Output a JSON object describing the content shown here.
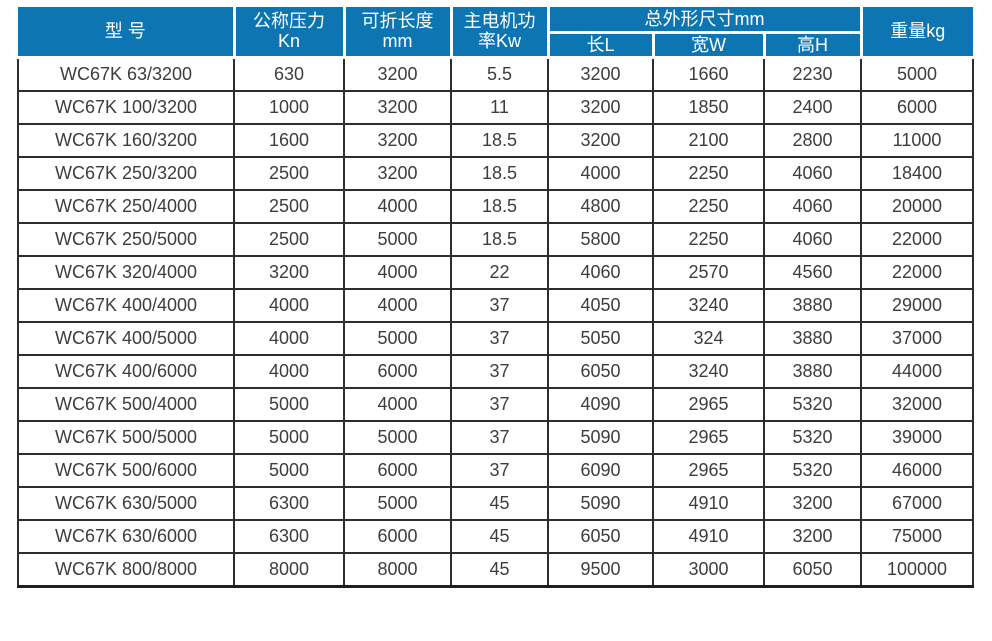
{
  "colors": {
    "header_blue": "#0d76b2",
    "grid_dark": "#2d2d2d",
    "text_dark": "#3d3d3d",
    "header_text": "#ffffff"
  },
  "table": {
    "header": {
      "model": "型 号",
      "pressure_line1": "公称压力",
      "pressure_line2": "Kn",
      "length_line1": "可折长度",
      "length_line2": "mm",
      "power_line1": "主电机功",
      "power_line2": "率Kw",
      "dims_group": "总外形尺寸mm",
      "dim_l": "长L",
      "dim_w": "宽W",
      "dim_h": "高H",
      "weight": "重量kg"
    },
    "rows": [
      {
        "model": "WC67K 63/3200",
        "pressure_kn": "630",
        "length_mm": "3200",
        "power_kw": "5.5",
        "l": "3200",
        "w": "1660",
        "h": "2230",
        "weight_kg": "5000"
      },
      {
        "model": "WC67K 100/3200",
        "pressure_kn": "1000",
        "length_mm": "3200",
        "power_kw": "11",
        "l": "3200",
        "w": "1850",
        "h": "2400",
        "weight_kg": "6000"
      },
      {
        "model": "WC67K 160/3200",
        "pressure_kn": "1600",
        "length_mm": "3200",
        "power_kw": "18.5",
        "l": "3200",
        "w": "2100",
        "h": "2800",
        "weight_kg": "11000"
      },
      {
        "model": "WC67K 250/3200",
        "pressure_kn": "2500",
        "length_mm": "3200",
        "power_kw": "18.5",
        "l": "4000",
        "w": "2250",
        "h": "4060",
        "weight_kg": "18400"
      },
      {
        "model": "WC67K 250/4000",
        "pressure_kn": "2500",
        "length_mm": "4000",
        "power_kw": "18.5",
        "l": "4800",
        "w": "2250",
        "h": "4060",
        "weight_kg": "20000"
      },
      {
        "model": "WC67K 250/5000",
        "pressure_kn": "2500",
        "length_mm": "5000",
        "power_kw": "18.5",
        "l": "5800",
        "w": "2250",
        "h": "4060",
        "weight_kg": "22000"
      },
      {
        "model": "WC67K 320/4000",
        "pressure_kn": "3200",
        "length_mm": "4000",
        "power_kw": "22",
        "l": "4060",
        "w": "2570",
        "h": "4560",
        "weight_kg": "22000"
      },
      {
        "model": "WC67K 400/4000",
        "pressure_kn": "4000",
        "length_mm": "4000",
        "power_kw": "37",
        "l": "4050",
        "w": "3240",
        "h": "3880",
        "weight_kg": "29000"
      },
      {
        "model": "WC67K 400/5000",
        "pressure_kn": "4000",
        "length_mm": "5000",
        "power_kw": "37",
        "l": "5050",
        "w": "324",
        "h": "3880",
        "weight_kg": "37000"
      },
      {
        "model": "WC67K 400/6000",
        "pressure_kn": "4000",
        "length_mm": "6000",
        "power_kw": "37",
        "l": "6050",
        "w": "3240",
        "h": "3880",
        "weight_kg": "44000"
      },
      {
        "model": "WC67K 500/4000",
        "pressure_kn": "5000",
        "length_mm": "4000",
        "power_kw": "37",
        "l": "4090",
        "w": "2965",
        "h": "5320",
        "weight_kg": "32000"
      },
      {
        "model": "WC67K 500/5000",
        "pressure_kn": "5000",
        "length_mm": "5000",
        "power_kw": "37",
        "l": "5090",
        "w": "2965",
        "h": "5320",
        "weight_kg": "39000"
      },
      {
        "model": "WC67K 500/6000",
        "pressure_kn": "5000",
        "length_mm": "6000",
        "power_kw": "37",
        "l": "6090",
        "w": "2965",
        "h": "5320",
        "weight_kg": "46000"
      },
      {
        "model": "WC67K 630/5000",
        "pressure_kn": "6300",
        "length_mm": "5000",
        "power_kw": "45",
        "l": "5090",
        "w": "4910",
        "h": "3200",
        "weight_kg": "67000"
      },
      {
        "model": "WC67K 630/6000",
        "pressure_kn": "6300",
        "length_mm": "6000",
        "power_kw": "45",
        "l": "6050",
        "w": "4910",
        "h": "3200",
        "weight_kg": "75000"
      },
      {
        "model": "WC67K 800/8000",
        "pressure_kn": "8000",
        "length_mm": "8000",
        "power_kw": "45",
        "l": "9500",
        "w": "3000",
        "h": "6050",
        "weight_kg": "100000"
      }
    ]
  }
}
